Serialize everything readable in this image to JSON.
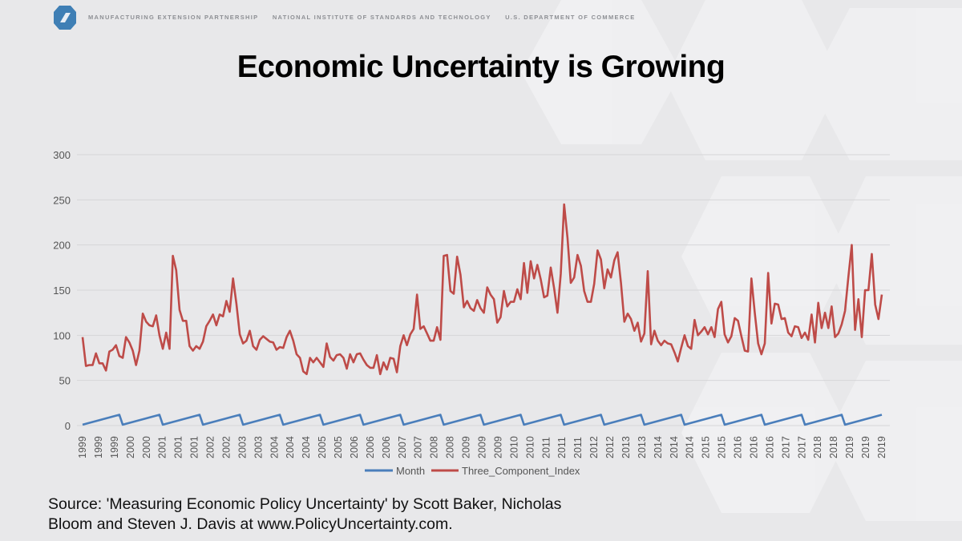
{
  "header": {
    "items": [
      "MANUFACTURING EXTENSION PARTNERSHIP",
      "NATIONAL INSTITUTE OF STANDARDS AND TECHNOLOGY",
      "U.S. DEPARTMENT OF COMMERCE"
    ]
  },
  "title": "Economic Uncertainty is Growing",
  "source": {
    "line1": "Source: 'Measuring Economic Policy Uncertainty' by Scott Baker, Nicholas",
    "line2": "Bloom and Steven J. Davis at www.PolicyUncertainty.com."
  },
  "chart_data": {
    "type": "line",
    "title": "",
    "xlabel": "",
    "ylabel": "",
    "ylim": [
      0,
      300
    ],
    "yticks": [
      0,
      50,
      100,
      150,
      200,
      250,
      300
    ],
    "grid": true,
    "legend": "bottom",
    "x_tick_labels": [
      "1999",
      "1999",
      "1999",
      "2000",
      "2000",
      "2001",
      "2001",
      "2001",
      "2002",
      "2002",
      "2003",
      "2003",
      "2004",
      "2004",
      "2004",
      "2005",
      "2005",
      "2006",
      "2006",
      "2006",
      "2007",
      "2007",
      "2008",
      "2008",
      "2009",
      "2009",
      "2009",
      "2010",
      "2010",
      "2011",
      "2011",
      "2011",
      "2012",
      "2012",
      "2013",
      "2013",
      "2014",
      "2014",
      "2014",
      "2015",
      "2015",
      "2016",
      "2016",
      "2016",
      "2017",
      "2017",
      "2018",
      "2018",
      "2019",
      "2019",
      "2019"
    ],
    "series": [
      {
        "name": "Month",
        "color": "#4a7ebb",
        "values": [
          1,
          2,
          3,
          4,
          5,
          6,
          7,
          8,
          9,
          10,
          11,
          12,
          1,
          2,
          3,
          4,
          5,
          6,
          7,
          8,
          9,
          10,
          11,
          12,
          1,
          2,
          3,
          4,
          5,
          6,
          7,
          8,
          9,
          10,
          11,
          12,
          1,
          2,
          3,
          4,
          5,
          6,
          7,
          8,
          9,
          10,
          11,
          12,
          1,
          2,
          3,
          4,
          5,
          6,
          7,
          8,
          9,
          10,
          11,
          12,
          1,
          2,
          3,
          4,
          5,
          6,
          7,
          8,
          9,
          10,
          11,
          12,
          1,
          2,
          3,
          4,
          5,
          6,
          7,
          8,
          9,
          10,
          11,
          12,
          1,
          2,
          3,
          4,
          5,
          6,
          7,
          8,
          9,
          10,
          11,
          12,
          1,
          2,
          3,
          4,
          5,
          6,
          7,
          8,
          9,
          10,
          11,
          12,
          1,
          2,
          3,
          4,
          5,
          6,
          7,
          8,
          9,
          10,
          11,
          12,
          1,
          2,
          3,
          4,
          5,
          6,
          7,
          8,
          9,
          10,
          11,
          12,
          1,
          2,
          3,
          4,
          5,
          6,
          7,
          8,
          9,
          10,
          11,
          12,
          1,
          2,
          3,
          4,
          5,
          6,
          7,
          8,
          9,
          10,
          11,
          12,
          1,
          2,
          3,
          4,
          5,
          6,
          7,
          8,
          9,
          10,
          11,
          12,
          1,
          2,
          3,
          4,
          5,
          6,
          7,
          8,
          9,
          10,
          11,
          12,
          1,
          2,
          3,
          4,
          5,
          6,
          7,
          8,
          9,
          10,
          11,
          12,
          1,
          2,
          3,
          4,
          5,
          6,
          7,
          8,
          9,
          10,
          11,
          12,
          1,
          2,
          3,
          4,
          5,
          6,
          7,
          8,
          9,
          10,
          11,
          12,
          1,
          2,
          3,
          4,
          5,
          6,
          7,
          8,
          9,
          10,
          11,
          12,
          1,
          2,
          3,
          4,
          5,
          6,
          7,
          8,
          9,
          10,
          11,
          12
        ]
      },
      {
        "name": "Three_Component_Index",
        "color": "#be4b48",
        "values": [
          98,
          66,
          67,
          67,
          80,
          69,
          69,
          61,
          82,
          84,
          89,
          77,
          75,
          98,
          92,
          83,
          67,
          83,
          124,
          115,
          111,
          110,
          122,
          100,
          85,
          103,
          85,
          188,
          172,
          128,
          116,
          116,
          88,
          83,
          88,
          85,
          93,
          110,
          116,
          123,
          111,
          123,
          121,
          138,
          126,
          163,
          135,
          101,
          91,
          94,
          105,
          88,
          84,
          95,
          99,
          96,
          93,
          92,
          84,
          87,
          86,
          98,
          105,
          94,
          79,
          75,
          60,
          57,
          75,
          70,
          75,
          70,
          65,
          91,
          76,
          72,
          78,
          79,
          75,
          63,
          79,
          70,
          79,
          80,
          73,
          67,
          64,
          64,
          78,
          57,
          70,
          62,
          75,
          74,
          59,
          88,
          100,
          89,
          101,
          107,
          145,
          107,
          110,
          102,
          94,
          94,
          109,
          95,
          188,
          189,
          149,
          146,
          187,
          167,
          131,
          138,
          130,
          127,
          139,
          130,
          125,
          153,
          145,
          140,
          114,
          120,
          149,
          132,
          137,
          137,
          151,
          140,
          180,
          147,
          182,
          163,
          178,
          162,
          142,
          144,
          175,
          152,
          125,
          168,
          245,
          208,
          158,
          164,
          189,
          177,
          149,
          137,
          137,
          157,
          194,
          184,
          152,
          173,
          164,
          183,
          192,
          158,
          115,
          124,
          118,
          105,
          114,
          93,
          102,
          171,
          90,
          105,
          94,
          89,
          94,
          91,
          90,
          81,
          71,
          86,
          100,
          88,
          85,
          117,
          100,
          104,
          109,
          101,
          109,
          98,
          129,
          137,
          101,
          92,
          99,
          119,
          116,
          99,
          83,
          82,
          163,
          125,
          91,
          79,
          91,
          169,
          113,
          135,
          134,
          118,
          119,
          103,
          99,
          110,
          109,
          97,
          103,
          95,
          123,
          92,
          136,
          108,
          125,
          108,
          132,
          98,
          102,
          112,
          127,
          165,
          200,
          106,
          140,
          98,
          150,
          150,
          190,
          134,
          118,
          145
        ]
      }
    ]
  }
}
